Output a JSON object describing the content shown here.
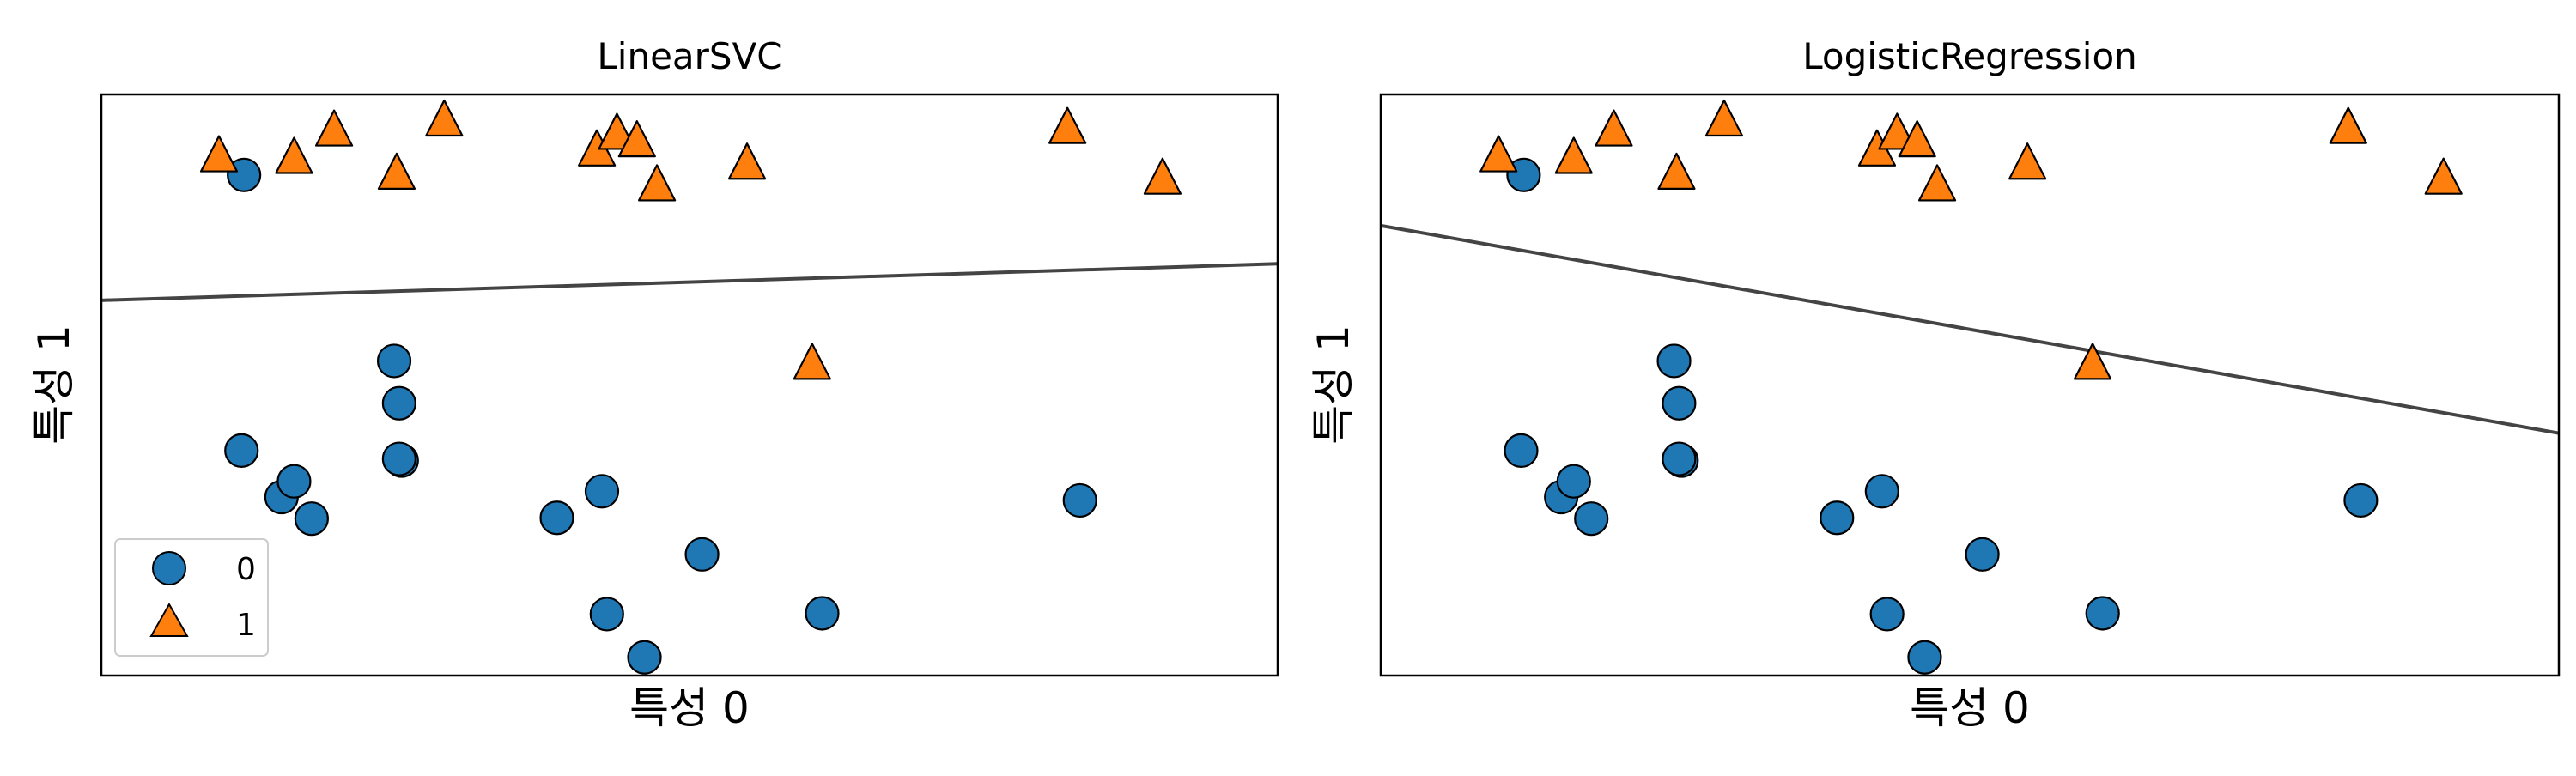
{
  "colors": {
    "class_0": "#1f77b4",
    "class_1": "#ff7f0e",
    "marker_edge": "#000000",
    "boundary": "#444444",
    "frame": "#000000",
    "background": "#ffffff"
  },
  "chart_data": [
    {
      "type": "scatter",
      "title": "LinearSVC",
      "xlabel": "특성 0",
      "ylabel": "특성 1",
      "xlim": [
        7.5,
        12.2
      ],
      "ylim": [
        -1.2,
        5.8
      ],
      "ticks": "hidden",
      "grid": false,
      "legend": {
        "placement": "lower-left",
        "entries": [
          "0",
          "1"
        ]
      },
      "series": [
        {
          "name": "0",
          "marker": "circle",
          "points": [
            [
              8.07,
              4.83
            ],
            [
              9.67,
              -0.98
            ],
            [
              8.67,
              2.59
            ],
            [
              8.22,
              0.95
            ],
            [
              8.06,
              1.51
            ],
            [
              9.32,
              0.7
            ],
            [
              11.41,
              0.91
            ],
            [
              8.69,
              2.08
            ],
            [
              10.38,
              -0.45
            ],
            [
              9.52,
              -0.46
            ],
            [
              9.9,
              0.26
            ],
            [
              8.27,
              1.14
            ],
            [
              8.7,
              1.39
            ],
            [
              9.5,
              1.02
            ],
            [
              8.69,
              1.41
            ],
            [
              8.34,
              0.69
            ]
          ]
        },
        {
          "name": "1",
          "marker": "triangle",
          "points": [
            [
              7.97,
              5.06
            ],
            [
              9.48,
              5.13
            ],
            [
              9.56,
              5.33
            ],
            [
              11.36,
              5.4
            ],
            [
              11.74,
              4.79
            ],
            [
              8.68,
              4.85
            ],
            [
              9.64,
              5.24
            ],
            [
              10.08,
              4.97
            ],
            [
              8.87,
              5.49
            ],
            [
              9.72,
              4.71
            ],
            [
              8.43,
              5.37
            ],
            [
              8.27,
              5.04
            ],
            [
              10.34,
              2.56
            ]
          ]
        }
      ],
      "decision_boundary": {
        "x": [
          7.5,
          12.2
        ],
        "y": [
          3.32,
          3.76
        ]
      }
    },
    {
      "type": "scatter",
      "title": "LogisticRegression",
      "xlabel": "특성 0",
      "ylabel": "특성 1",
      "xlim": [
        7.5,
        12.2
      ],
      "ylim": [
        -1.2,
        5.8
      ],
      "ticks": "hidden",
      "grid": false,
      "series": [
        {
          "name": "0",
          "marker": "circle",
          "points": [
            [
              8.07,
              4.83
            ],
            [
              9.67,
              -0.98
            ],
            [
              8.67,
              2.59
            ],
            [
              8.22,
              0.95
            ],
            [
              8.06,
              1.51
            ],
            [
              9.32,
              0.7
            ],
            [
              11.41,
              0.91
            ],
            [
              8.69,
              2.08
            ],
            [
              10.38,
              -0.45
            ],
            [
              9.52,
              -0.46
            ],
            [
              9.9,
              0.26
            ],
            [
              8.27,
              1.14
            ],
            [
              8.7,
              1.39
            ],
            [
              9.5,
              1.02
            ],
            [
              8.69,
              1.41
            ],
            [
              8.34,
              0.69
            ]
          ]
        },
        {
          "name": "1",
          "marker": "triangle",
          "points": [
            [
              7.97,
              5.06
            ],
            [
              9.48,
              5.13
            ],
            [
              9.56,
              5.33
            ],
            [
              11.36,
              5.4
            ],
            [
              11.74,
              4.79
            ],
            [
              8.68,
              4.85
            ],
            [
              9.64,
              5.24
            ],
            [
              10.08,
              4.97
            ],
            [
              8.87,
              5.49
            ],
            [
              9.72,
              4.71
            ],
            [
              8.43,
              5.37
            ],
            [
              8.27,
              5.04
            ],
            [
              10.34,
              2.56
            ]
          ]
        }
      ],
      "decision_boundary": {
        "x": [
          7.5,
          12.2
        ],
        "y": [
          4.22,
          1.72
        ]
      }
    }
  ]
}
